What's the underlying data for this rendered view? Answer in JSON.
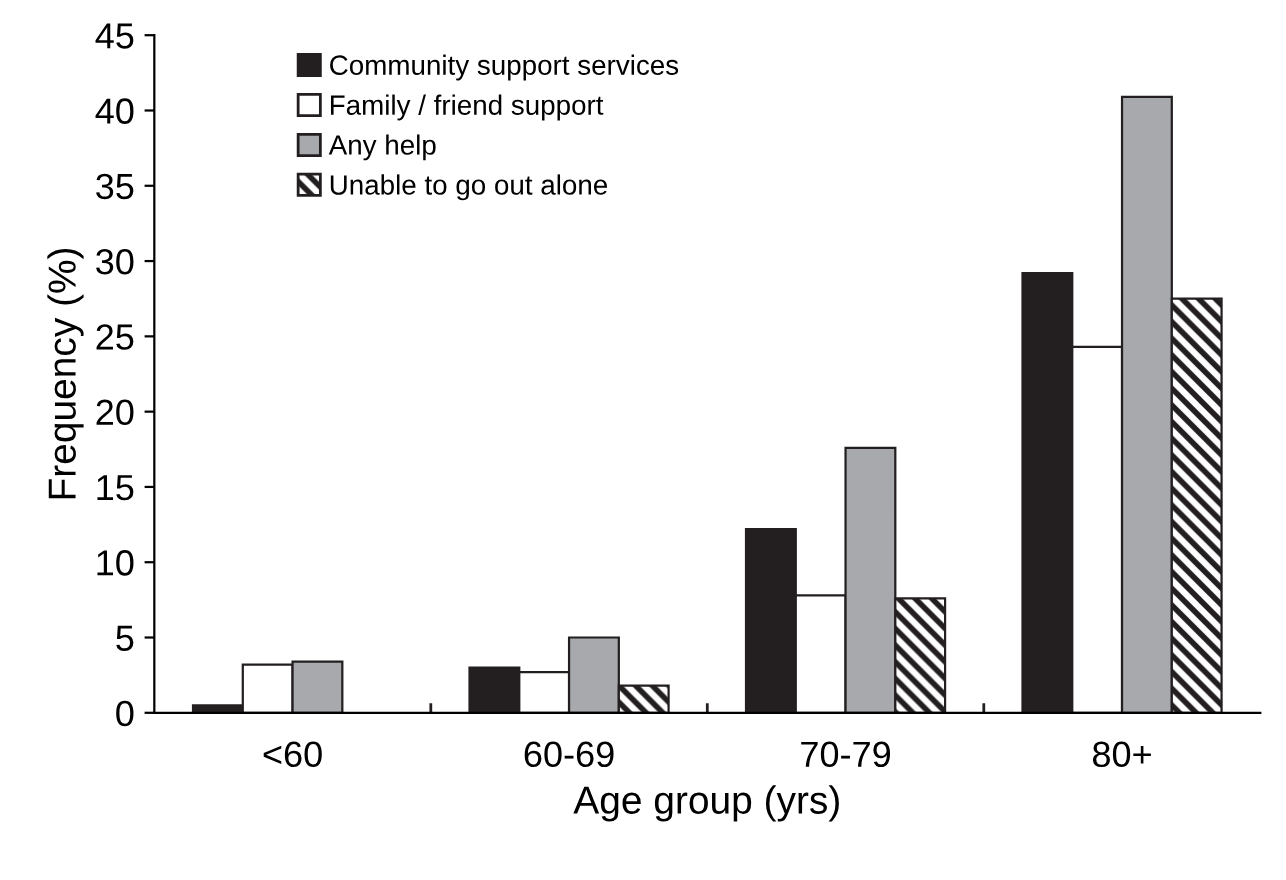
{
  "chart_data": {
    "type": "bar",
    "xlabel": "Age group (yrs)",
    "ylabel": "Frequency (%)",
    "categories": [
      "<60",
      "60-69",
      "70-79",
      "80+"
    ],
    "series": [
      {
        "name": "Community support services",
        "color": "#231f20",
        "values": [
          0.5,
          3.0,
          12.2,
          29.2
        ]
      },
      {
        "name": "Family / friend support",
        "color": "#ffffff",
        "values": [
          3.2,
          2.7,
          7.8,
          24.3
        ]
      },
      {
        "name": "Any help",
        "color": "#a7a9ac",
        "values": [
          3.4,
          5.0,
          17.6,
          40.9
        ]
      },
      {
        "name": "Unable to go out alone",
        "color": "#231f20",
        "values": [
          null,
          1.8,
          7.6,
          27.5
        ]
      }
    ],
    "ylim": [
      0,
      45
    ],
    "yticks": [
      0,
      5,
      10,
      15,
      20,
      25,
      30,
      35,
      40,
      45
    ],
    "grid": false,
    "legend": "top left"
  }
}
